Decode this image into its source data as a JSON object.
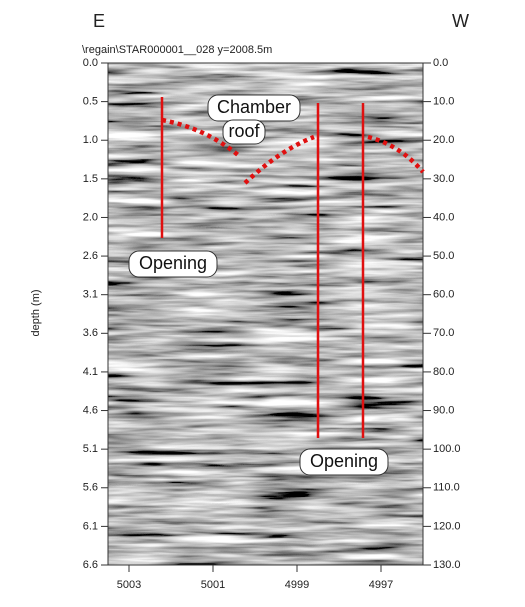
{
  "chart_data": {
    "type": "radargram",
    "left_title": "E",
    "right_title": "W",
    "subtitle": "\\regain\\STAR000001__028   y=2008.5m",
    "ylabel": "depth (m)",
    "ylim": [
      0,
      6.63
    ],
    "yticks": [
      {
        "value": 0,
        "label": "0.0"
      },
      {
        "value": 0.51,
        "label": "0.5"
      },
      {
        "value": 1.02,
        "label": "1.0"
      },
      {
        "value": 1.53,
        "label": "1.5"
      },
      {
        "value": 2.04,
        "label": "2.0"
      },
      {
        "value": 2.55,
        "label": "2.6"
      },
      {
        "value": 3.06,
        "label": "3.1"
      },
      {
        "value": 3.57,
        "label": "3.6"
      },
      {
        "value": 4.08,
        "label": "4.1"
      },
      {
        "value": 4.59,
        "label": "4.6"
      },
      5.1,
      {
        "value": 5.61,
        "label": "5.6"
      },
      {
        "value": 6.12,
        "label": "6.1"
      },
      {
        "value": 6.63,
        "label": "6.6"
      }
    ],
    "y2lim": [
      0,
      130
    ],
    "y2ticks": [
      {
        "value": 0,
        "label": "0.0"
      },
      {
        "value": 10,
        "label": "10.0"
      },
      {
        "value": 20,
        "label": "20.0"
      },
      {
        "value": 30,
        "label": "30.0"
      },
      {
        "value": 40,
        "label": "40.0"
      },
      {
        "value": 50,
        "label": "50.0"
      },
      {
        "value": 60,
        "label": "60.0"
      },
      {
        "value": 70,
        "label": "70.0"
      },
      {
        "value": 80,
        "label": "80.0"
      },
      {
        "value": 90,
        "label": "90.0"
      },
      {
        "value": 100,
        "label": "100.0"
      },
      {
        "value": 110,
        "label": "110.0"
      },
      {
        "value": 120,
        "label": "120.0"
      },
      {
        "value": 130,
        "label": "130.0"
      }
    ],
    "xlim": [
      5003.5,
      4996
    ],
    "xticks": [
      5003,
      5001,
      4999,
      4997
    ],
    "annotations": [
      "Chamber",
      "roof",
      "Opening",
      "Opening"
    ]
  }
}
